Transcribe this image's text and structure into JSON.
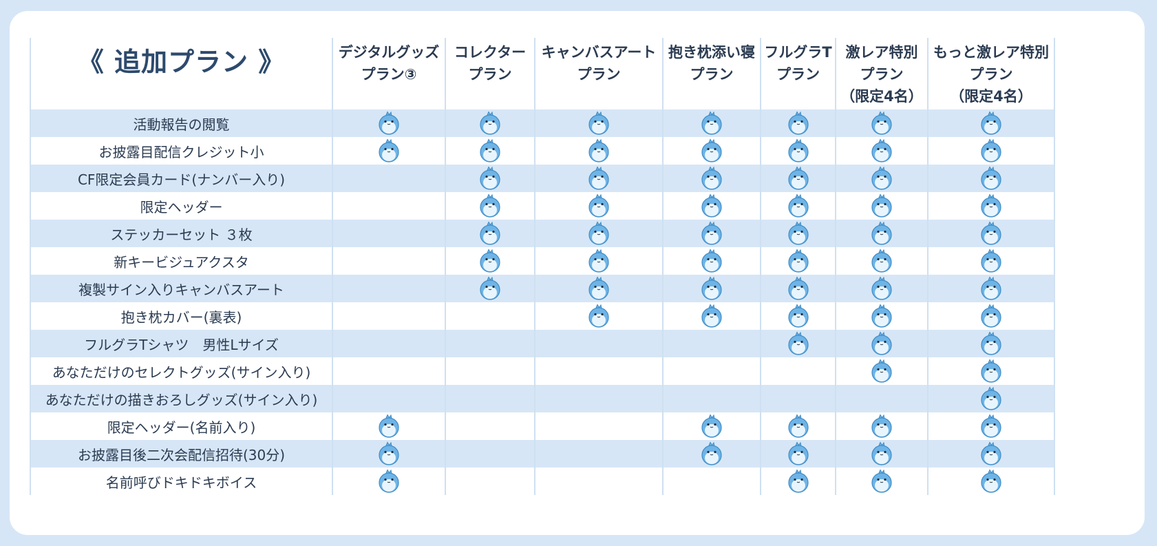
{
  "title": "《 追加プラン 》",
  "plans": [
    "デジタルグッズ\nプラン③",
    "コレクター\nプラン",
    "キャンバスアート\nプラン",
    "抱き枕添い寝\nプラン",
    "フルグラT\nプラン",
    "激レア特別\nプラン\n（限定4名）",
    "もっと激レア特別\nプラン\n（限定4名）"
  ],
  "included_icon": "mascot-icon",
  "rows": [
    {
      "label": "活動報告の閲覧",
      "included": [
        true,
        true,
        true,
        true,
        true,
        true,
        true
      ]
    },
    {
      "label": "お披露目配信クレジット小",
      "included": [
        true,
        true,
        true,
        true,
        true,
        true,
        true
      ]
    },
    {
      "label": "CF限定会員カード(ナンバー入り)",
      "included": [
        false,
        true,
        true,
        true,
        true,
        true,
        true
      ]
    },
    {
      "label": "限定ヘッダー",
      "included": [
        false,
        true,
        true,
        true,
        true,
        true,
        true
      ]
    },
    {
      "label": "ステッカーセット ３枚",
      "included": [
        false,
        true,
        true,
        true,
        true,
        true,
        true
      ]
    },
    {
      "label": "新キービジュアクスタ",
      "included": [
        false,
        true,
        true,
        true,
        true,
        true,
        true
      ]
    },
    {
      "label": "複製サイン入りキャンバスアート",
      "included": [
        false,
        true,
        true,
        true,
        true,
        true,
        true
      ]
    },
    {
      "label": "抱き枕カバー(裏表)",
      "included": [
        false,
        false,
        true,
        true,
        true,
        true,
        true
      ]
    },
    {
      "label": "フルグラTシャツ　男性Lサイズ",
      "included": [
        false,
        false,
        false,
        false,
        true,
        true,
        true
      ]
    },
    {
      "label": "あなただけのセレクトグッズ(サイン入り)",
      "included": [
        false,
        false,
        false,
        false,
        false,
        true,
        true
      ]
    },
    {
      "label": "あなただけの描きおろしグッズ(サイン入り)",
      "included": [
        false,
        false,
        false,
        false,
        false,
        false,
        true
      ]
    },
    {
      "label": "限定ヘッダー(名前入り)",
      "included": [
        true,
        false,
        false,
        true,
        true,
        true,
        true
      ]
    },
    {
      "label": "お披露目後二次会配信招待(30分)",
      "included": [
        true,
        false,
        false,
        true,
        true,
        true,
        true
      ]
    },
    {
      "label": "名前呼びドキドキボイス",
      "included": [
        true,
        false,
        false,
        false,
        true,
        true,
        true
      ]
    }
  ],
  "colors": {
    "frame": "#d6e6f7",
    "shaded_row": "#d6e6f6",
    "grid_line": "#cfe0f1",
    "text": "#2b3b51",
    "title": "#2d4a6c",
    "mascot": "#6fb4e6"
  }
}
